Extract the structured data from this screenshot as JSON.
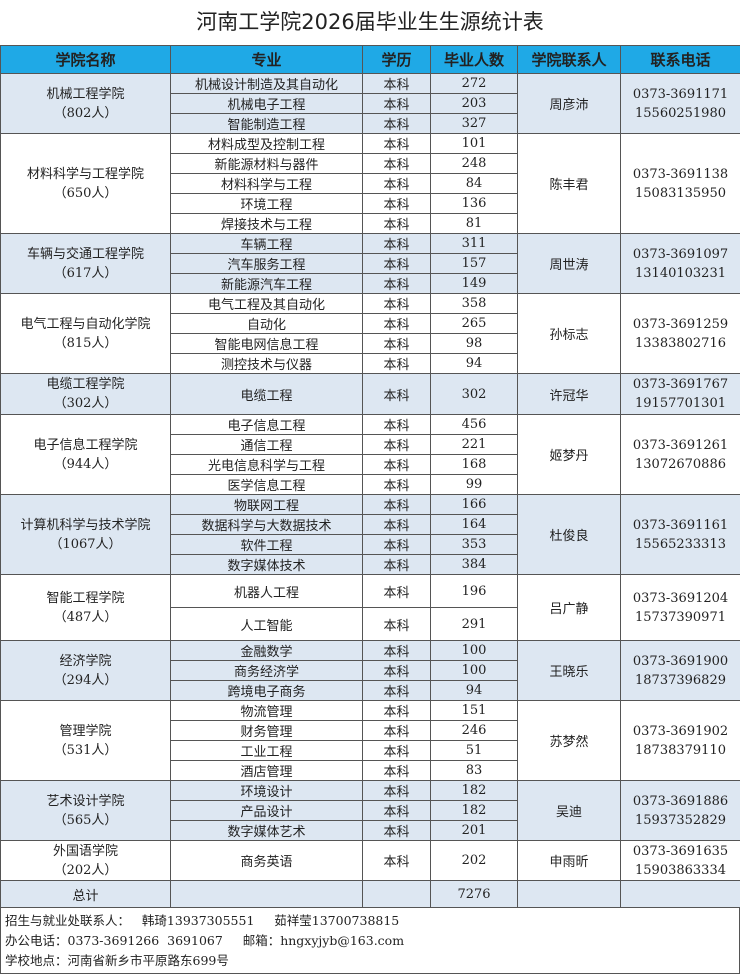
{
  "title": "河南工学院2026届毕业生生源统计表",
  "headers": [
    "学院名称",
    "专业",
    "学历",
    "毕业人数",
    "学院联系人",
    "联系电话"
  ],
  "colors": {
    "header": "#1fa9e6",
    "band": "#dde7f2"
  },
  "colleges": [
    {
      "name": "机械工程学院",
      "count": "（802人）",
      "contact": "周彦沛",
      "phone": "0373-3691171",
      "mobile": "15560251980",
      "majors": [
        [
          "机械设计制造及其自动化",
          "本科",
          "272"
        ],
        [
          "机械电子工程",
          "本科",
          "203"
        ],
        [
          "智能制造工程",
          "本科",
          "327"
        ]
      ]
    },
    {
      "name": "材料科学与工程学院",
      "count": "（650人）",
      "contact": "陈丰君",
      "phone": "0373-3691138",
      "mobile": "15083135950",
      "majors": [
        [
          "材料成型及控制工程",
          "本科",
          "101"
        ],
        [
          "新能源材料与器件",
          "本科",
          "248"
        ],
        [
          "材料科学与工程",
          "本科",
          "84"
        ],
        [
          "环境工程",
          "本科",
          "136"
        ],
        [
          "焊接技术与工程",
          "本科",
          "81"
        ]
      ]
    },
    {
      "name": "车辆与交通工程学院",
      "count": "（617人）",
      "contact": "周世涛",
      "phone": "0373-3691097",
      "mobile": "13140103231",
      "majors": [
        [
          "车辆工程",
          "本科",
          "311"
        ],
        [
          "汽车服务工程",
          "本科",
          "157"
        ],
        [
          "新能源汽车工程",
          "本科",
          "149"
        ]
      ]
    },
    {
      "name": "电气工程与自动化学院",
      "count": "（815人）",
      "contact": "孙标志",
      "phone": "0373-3691259",
      "mobile": "13383802716",
      "majors": [
        [
          "电气工程及其自动化",
          "本科",
          "358"
        ],
        [
          "自动化",
          "本科",
          "265"
        ],
        [
          "智能电网信息工程",
          "本科",
          "98"
        ],
        [
          "测控技术与仪器",
          "本科",
          "94"
        ]
      ]
    },
    {
      "name": "电缆工程学院",
      "count": "（302人）",
      "contact": "许冠华",
      "phone": "0373-3691767",
      "mobile": "19157701301",
      "majors": [
        [
          "电缆工程",
          "本科",
          "302"
        ]
      ]
    },
    {
      "name": "电子信息工程学院",
      "count": "（944人）",
      "contact": "姬梦丹",
      "phone": "0373-3691261",
      "mobile": "13072670886",
      "majors": [
        [
          "电子信息工程",
          "本科",
          "456"
        ],
        [
          "通信工程",
          "本科",
          "221"
        ],
        [
          "光电信息科学与工程",
          "本科",
          "168"
        ],
        [
          "医学信息工程",
          "本科",
          "99"
        ]
      ]
    },
    {
      "name": "计算机科学与技术学院",
      "count": "（1067人）",
      "contact": "杜俊良",
      "phone": "0373-3691161",
      "mobile": "15565233313",
      "majors": [
        [
          "物联网工程",
          "本科",
          "166"
        ],
        [
          "数据科学与大数据技术",
          "本科",
          "164"
        ],
        [
          "软件工程",
          "本科",
          "353"
        ],
        [
          "数字媒体技术",
          "本科",
          "384"
        ]
      ]
    },
    {
      "name": "智能工程学院",
      "count": "（487人）",
      "contact": "吕广静",
      "phone": "0373-3691204",
      "mobile": "15737390971",
      "majors": [
        [
          "机器人工程",
          "本科",
          "196"
        ],
        [
          "人工智能",
          "本科",
          "291"
        ]
      ]
    },
    {
      "name": "经济学院",
      "count": "（294人）",
      "contact": "王晓乐",
      "phone": "0373-3691900",
      "mobile": "18737396829",
      "majors": [
        [
          "金融数学",
          "本科",
          "100"
        ],
        [
          "商务经济学",
          "本科",
          "100"
        ],
        [
          "跨境电子商务",
          "本科",
          "94"
        ]
      ]
    },
    {
      "name": "管理学院",
      "count": "（531人）",
      "contact": "苏梦然",
      "phone": "0373-3691902",
      "mobile": "18738379110",
      "majors": [
        [
          "物流管理",
          "本科",
          "151"
        ],
        [
          "财务管理",
          "本科",
          "246"
        ],
        [
          "工业工程",
          "本科",
          "51"
        ],
        [
          "酒店管理",
          "本科",
          "83"
        ]
      ]
    },
    {
      "name": "艺术设计学院",
      "count": "（565人）",
      "contact": "吴迪",
      "phone": "0373-3691886",
      "mobile": "15937352829",
      "majors": [
        [
          "环境设计",
          "本科",
          "182"
        ],
        [
          "产品设计",
          "本科",
          "182"
        ],
        [
          "数字媒体艺术",
          "本科",
          "201"
        ]
      ]
    },
    {
      "name": "外国语学院",
      "count": "（202人）",
      "contact": "申雨昕",
      "phone": "0373-3691635",
      "mobile": "15903863334",
      "majors": [
        [
          "商务英语",
          "本科",
          "202"
        ]
      ]
    }
  ],
  "total": {
    "label": "总计",
    "value": "7276"
  },
  "footer": [
    "招生与就业处联系人：   韩琦13937305551     茹祥莹13700738815",
    "办公电话：0373-3691266  3691067     邮箱：hngxyjyb@163.com",
    "学校地点：河南省新乡市平原路东699号"
  ]
}
